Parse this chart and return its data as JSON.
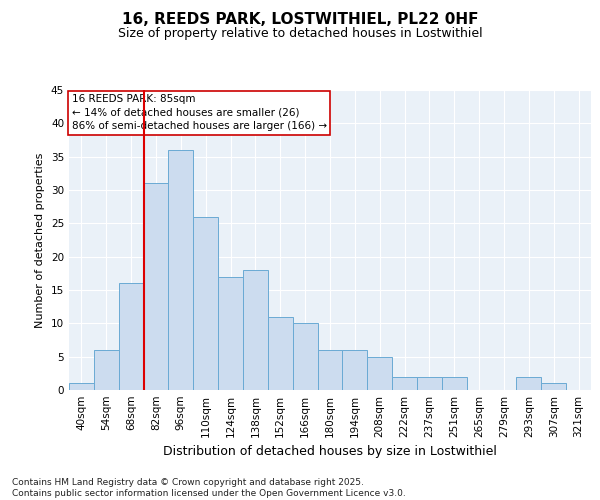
{
  "title1": "16, REEDS PARK, LOSTWITHIEL, PL22 0HF",
  "title2": "Size of property relative to detached houses in Lostwithiel",
  "xlabel": "Distribution of detached houses by size in Lostwithiel",
  "ylabel": "Number of detached properties",
  "bar_labels": [
    "40sqm",
    "54sqm",
    "68sqm",
    "82sqm",
    "96sqm",
    "110sqm",
    "124sqm",
    "138sqm",
    "152sqm",
    "166sqm",
    "180sqm",
    "194sqm",
    "208sqm",
    "222sqm",
    "237sqm",
    "251sqm",
    "265sqm",
    "279sqm",
    "293sqm",
    "307sqm",
    "321sqm"
  ],
  "bar_values": [
    1,
    6,
    16,
    31,
    36,
    26,
    17,
    18,
    11,
    10,
    6,
    6,
    5,
    2,
    2,
    2,
    0,
    0,
    2,
    1,
    0
  ],
  "bar_color": "#ccdcef",
  "bar_edge_color": "#6aaad4",
  "fig_background_color": "#ffffff",
  "plot_background_color": "#eaf1f8",
  "grid_color": "#ffffff",
  "vline_color": "#dd0000",
  "vline_x_index": 3,
  "annotation_title": "16 REEDS PARK: 85sqm",
  "annotation_line1": "← 14% of detached houses are smaller (26)",
  "annotation_line2": "86% of semi-detached houses are larger (166) →",
  "annotation_box_facecolor": "#ffffff",
  "annotation_box_edgecolor": "#cc0000",
  "ylim": [
    0,
    45
  ],
  "yticks": [
    0,
    5,
    10,
    15,
    20,
    25,
    30,
    35,
    40,
    45
  ],
  "footnote1": "Contains HM Land Registry data © Crown copyright and database right 2025.",
  "footnote2": "Contains public sector information licensed under the Open Government Licence v3.0.",
  "title1_fontsize": 11,
  "title2_fontsize": 9,
  "xlabel_fontsize": 9,
  "ylabel_fontsize": 8,
  "tick_fontsize": 7.5,
  "annotation_fontsize": 7.5,
  "footnote_fontsize": 6.5
}
